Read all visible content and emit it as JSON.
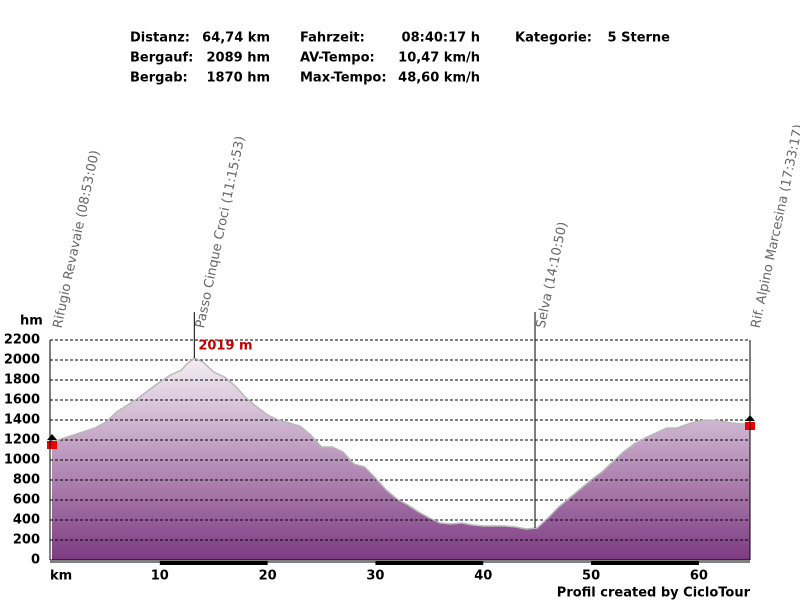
{
  "chart_data": {
    "type": "area",
    "stats": [
      {
        "label": "Distanz:",
        "value": "64,74 km"
      },
      {
        "label": "Bergauf:",
        "value": "2089 hm"
      },
      {
        "label": "Bergab:",
        "value": "1870 hm"
      },
      {
        "label": "Fahrzeit:",
        "value": "08:40:17 h"
      },
      {
        "label": "AV-Tempo:",
        "value": "10,47 km/h"
      },
      {
        "label": "Max-Tempo:",
        "value": "48,60 km/h"
      },
      {
        "label": "Kategorie:",
        "value": "5 Sterne"
      }
    ],
    "y_label": "hm",
    "x_label": "km",
    "waypoints": [
      {
        "x": 0,
        "label": "Rifugio Revavaie (08:53:00)"
      },
      {
        "x": 13.2,
        "label": "Passo Cinque Croci (11:15:53)"
      },
      {
        "x": 44.8,
        "label": "Selva (14:10:50)"
      },
      {
        "x": 64.74,
        "label": "Rif. Alpino Marcesina (17:33:17)"
      }
    ],
    "peak": {
      "x": 13.2,
      "value": 2019,
      "label": "2019 m"
    },
    "x": [
      0,
      2,
      4,
      5,
      6,
      7,
      8,
      9,
      10,
      11,
      12,
      12.5,
      13.2,
      14,
      15,
      16,
      17,
      18,
      19,
      20,
      21,
      22,
      23,
      24,
      25,
      26,
      27,
      28,
      29,
      30,
      31,
      32,
      33,
      34,
      35,
      36,
      37,
      38,
      39,
      40,
      41,
      42,
      43,
      44,
      45,
      46,
      47,
      48,
      49,
      50,
      51,
      52,
      53,
      54,
      55,
      56,
      57,
      58,
      59,
      60,
      61,
      62,
      63,
      64,
      64.74
    ],
    "values": [
      1180,
      1250,
      1320,
      1380,
      1480,
      1550,
      1620,
      1700,
      1780,
      1850,
      1900,
      1960,
      2019,
      1980,
      1880,
      1830,
      1740,
      1620,
      1530,
      1450,
      1400,
      1370,
      1340,
      1250,
      1130,
      1130,
      1080,
      960,
      930,
      820,
      700,
      610,
      550,
      480,
      420,
      370,
      360,
      370,
      350,
      340,
      340,
      340,
      330,
      310,
      320,
      420,
      530,
      620,
      710,
      800,
      880,
      980,
      1080,
      1160,
      1220,
      1270,
      1320,
      1320,
      1360,
      1390,
      1400,
      1390,
      1370,
      1360,
      1370
    ],
    "color": "#8a4a8c",
    "xlim": [
      0,
      64.74
    ],
    "ylim": [
      0,
      2200
    ],
    "xticks": [
      10,
      20,
      30,
      40,
      50,
      60
    ],
    "yticks": [
      0,
      200,
      400,
      600,
      800,
      1000,
      1200,
      1400,
      1600,
      1800,
      2000,
      2200
    ],
    "grid": true,
    "footer": "Profil created by CicloTour"
  }
}
